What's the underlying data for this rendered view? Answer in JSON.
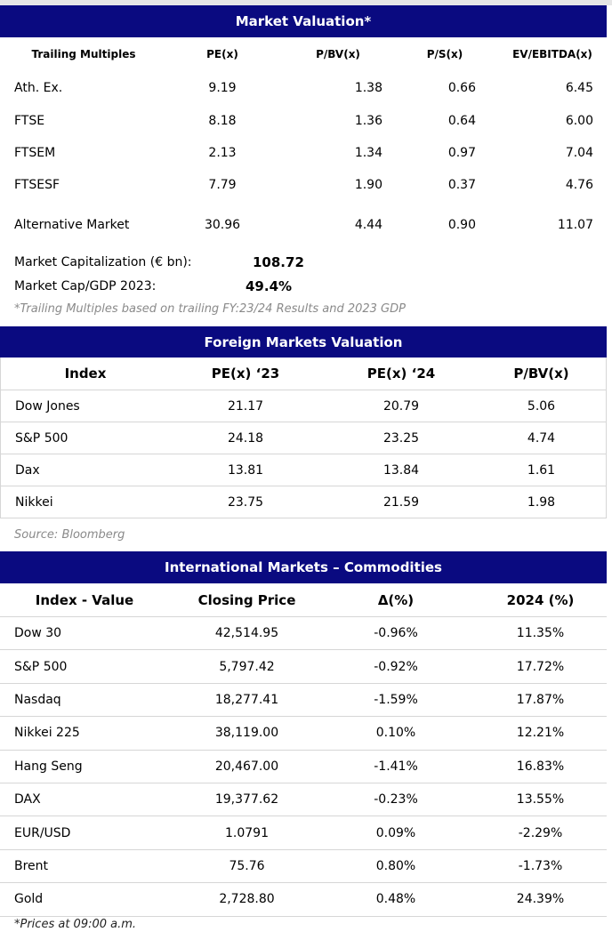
{
  "market_valuation": {
    "title": "Market Valuation*",
    "headers": [
      "Trailing Multiples",
      "PE(x)",
      "P/BV(x)",
      "P/S(x)",
      "EV/EBITDA(x)"
    ],
    "rows": [
      {
        "name": "Ath. Ex.",
        "pe": "9.19",
        "pbv": "1.38",
        "ps": "0.66",
        "ev": "6.45"
      },
      {
        "name": "FTSE",
        "pe": "8.18",
        "pbv": "1.36",
        "ps": "0.64",
        "ev": "6.00"
      },
      {
        "name": "FTSEM",
        "pe": "2.13",
        "pbv": "1.34",
        "ps": "0.97",
        "ev": "7.04"
      },
      {
        "name": "FTSESF",
        "pe": "7.79",
        "pbv": "1.90",
        "ps": "0.37",
        "ev": "4.76"
      },
      {
        "name": "Alternative Market",
        "pe": "30.96",
        "pbv": "4.44",
        "ps": "0.90",
        "ev": "11.07"
      }
    ],
    "market_cap_label": "Market Capitalization (€ bn):",
    "market_cap_value": "108.72",
    "cap_gdp_label": "Market Cap/GDP 2023:",
    "cap_gdp_value": "49.4%",
    "footnote": "*Trailing Multiples based on trailing FY:23/24 Results and 2023 GDP"
  },
  "foreign_markets": {
    "title": "Foreign Markets Valuation",
    "headers": [
      "Index",
      "PE(x) ‘23",
      "PE(x) ‘24",
      "P/BV(x)"
    ],
    "rows": [
      {
        "name": "Dow Jones",
        "pe23": "21.17",
        "pe24": "20.79",
        "pbv": "5.06"
      },
      {
        "name": "S&P 500",
        "pe23": "24.18",
        "pe24": "23.25",
        "pbv": "4.74"
      },
      {
        "name": "Dax",
        "pe23": "13.81",
        "pe24": "13.84",
        "pbv": "1.61"
      },
      {
        "name": "Nikkei",
        "pe23": "23.75",
        "pe24": "21.59",
        "pbv": "1.98"
      }
    ],
    "source": "Source: Bloomberg"
  },
  "international_markets": {
    "title": "International Markets – Commodities",
    "headers": [
      "Index - Value",
      "Closing Price",
      "Δ(%)",
      "2024 (%)"
    ],
    "rows": [
      {
        "name": "Dow 30",
        "close": "42,514.95",
        "delta": "-0.96%",
        "ytd": "11.35%"
      },
      {
        "name": "S&P 500",
        "close": "5,797.42",
        "delta": "-0.92%",
        "ytd": "17.72%"
      },
      {
        "name": "Nasdaq",
        "close": "18,277.41",
        "delta": "-1.59%",
        "ytd": "17.87%"
      },
      {
        "name": "Nikkei 225",
        "close": "38,119.00",
        "delta": "0.10%",
        "ytd": "12.21%"
      },
      {
        "name": "Hang Seng",
        "close": "20,467.00",
        "delta": "-1.41%",
        "ytd": "16.83%"
      },
      {
        "name": "DAX",
        "close": "19,377.62",
        "delta": "-0.23%",
        "ytd": "13.55%"
      },
      {
        "name": "EUR/USD",
        "close": "1.0791",
        "delta": "0.09%",
        "ytd": "-2.29%"
      },
      {
        "name": "Brent",
        "close": "75.76",
        "delta": "0.80%",
        "ytd": "-1.73%"
      },
      {
        "name": "Gold",
        "close": "2,728.80",
        "delta": "0.48%",
        "ytd": "24.39%"
      }
    ],
    "footnote": "*Prices at 09:00 a.m."
  }
}
